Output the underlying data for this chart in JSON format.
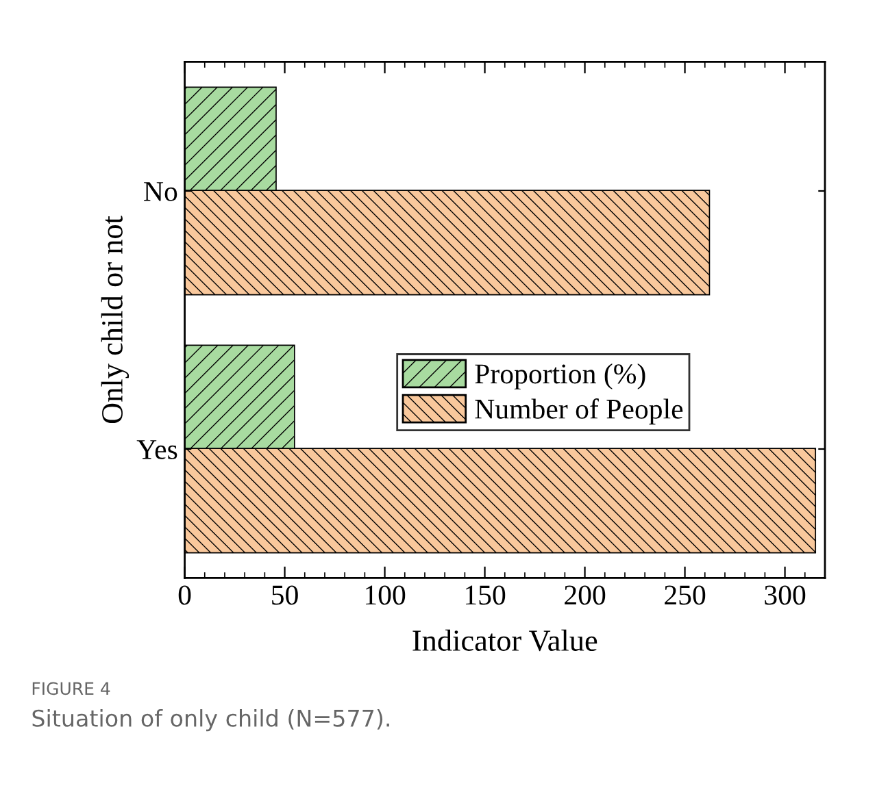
{
  "chart_data": {
    "type": "bar",
    "orientation": "horizontal",
    "categories": [
      "No",
      "Yes"
    ],
    "series": [
      {
        "name": "Proportion (%)",
        "color": "#a8dba0",
        "values": [
          45.4,
          54.6
        ]
      },
      {
        "name": "Number of People",
        "color": "#f9c89c",
        "values": [
          262,
          315
        ]
      }
    ],
    "xlabel": "Indicator Value",
    "ylabel": "Only child or not",
    "xlim": [
      0,
      320
    ],
    "xticks": [
      0,
      50,
      100,
      150,
      200,
      250,
      300
    ],
    "legend": "center",
    "grid": false,
    "annotations": [
      "FIGURE 4",
      "Situation of only child (N=577)."
    ]
  }
}
